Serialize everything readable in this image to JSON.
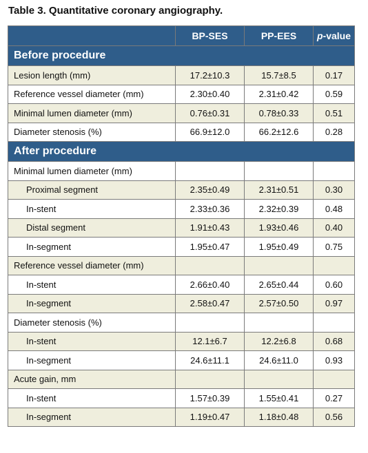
{
  "caption": "Table 3. Quantitative coronary angiography.",
  "header": {
    "col1": "BP-SES",
    "col2": "PP-EES",
    "col3": "p-value"
  },
  "rows": [
    {
      "type": "section",
      "label": "Before procedure"
    },
    {
      "type": "data",
      "shade": true,
      "indent": false,
      "label": "Lesion length (mm)",
      "v1": "17.2±10.3",
      "v2": "15.7±8.5",
      "p": "0.17"
    },
    {
      "type": "data",
      "shade": false,
      "indent": false,
      "label": "Reference vessel diameter (mm)",
      "v1": "2.30±0.40",
      "v2": "2.31±0.42",
      "p": "0.59"
    },
    {
      "type": "data",
      "shade": true,
      "indent": false,
      "label": "Minimal lumen diameter (mm)",
      "v1": "0.76±0.31",
      "v2": "0.78±0.33",
      "p": "0.51"
    },
    {
      "type": "data",
      "shade": false,
      "indent": false,
      "label": "Diameter stenosis (%)",
      "v1": "66.9±12.0",
      "v2": "66.2±12.6",
      "p": "0.28"
    },
    {
      "type": "section",
      "label": "After procedure"
    },
    {
      "type": "group",
      "shade": false,
      "label": "Minimal lumen diameter (mm)"
    },
    {
      "type": "data",
      "shade": true,
      "indent": true,
      "label": "Proximal segment",
      "v1": "2.35±0.49",
      "v2": "2.31±0.51",
      "p": "0.30"
    },
    {
      "type": "data",
      "shade": false,
      "indent": true,
      "label": "In-stent",
      "v1": "2.33±0.36",
      "v2": "2.32±0.39",
      "p": "0.48"
    },
    {
      "type": "data",
      "shade": true,
      "indent": true,
      "label": "Distal segment",
      "v1": "1.91±0.43",
      "v2": "1.93±0.46",
      "p": "0.40"
    },
    {
      "type": "data",
      "shade": false,
      "indent": true,
      "label": "In-segment",
      "v1": "1.95±0.47",
      "v2": "1.95±0.49",
      "p": "0.75"
    },
    {
      "type": "group",
      "shade": true,
      "label": "Reference vessel diameter (mm)"
    },
    {
      "type": "data",
      "shade": false,
      "indent": true,
      "label": "In-stent",
      "v1": "2.66±0.40",
      "v2": "2.65±0.44",
      "p": "0.60"
    },
    {
      "type": "data",
      "shade": true,
      "indent": true,
      "label": "In-segment",
      "v1": "2.58±0.47",
      "v2": "2.57±0.50",
      "p": "0.97"
    },
    {
      "type": "group",
      "shade": false,
      "label": "Diameter stenosis (%)"
    },
    {
      "type": "data",
      "shade": true,
      "indent": true,
      "label": "In-stent",
      "v1": "12.1±6.7",
      "v2": "12.2±6.8",
      "p": "0.68"
    },
    {
      "type": "data",
      "shade": false,
      "indent": true,
      "label": "In-segment",
      "v1": "24.6±11.1",
      "v2": "24.6±11.0",
      "p": "0.93"
    },
    {
      "type": "group",
      "shade": true,
      "label": "Acute gain, mm"
    },
    {
      "type": "data",
      "shade": false,
      "indent": true,
      "label": "In-stent",
      "v1": "1.57±0.39",
      "v2": "1.55±0.41",
      "p": "0.27"
    },
    {
      "type": "data",
      "shade": true,
      "indent": true,
      "label": "In-segment",
      "v1": "1.19±0.47",
      "v2": "1.18±0.48",
      "p": "0.56"
    }
  ]
}
